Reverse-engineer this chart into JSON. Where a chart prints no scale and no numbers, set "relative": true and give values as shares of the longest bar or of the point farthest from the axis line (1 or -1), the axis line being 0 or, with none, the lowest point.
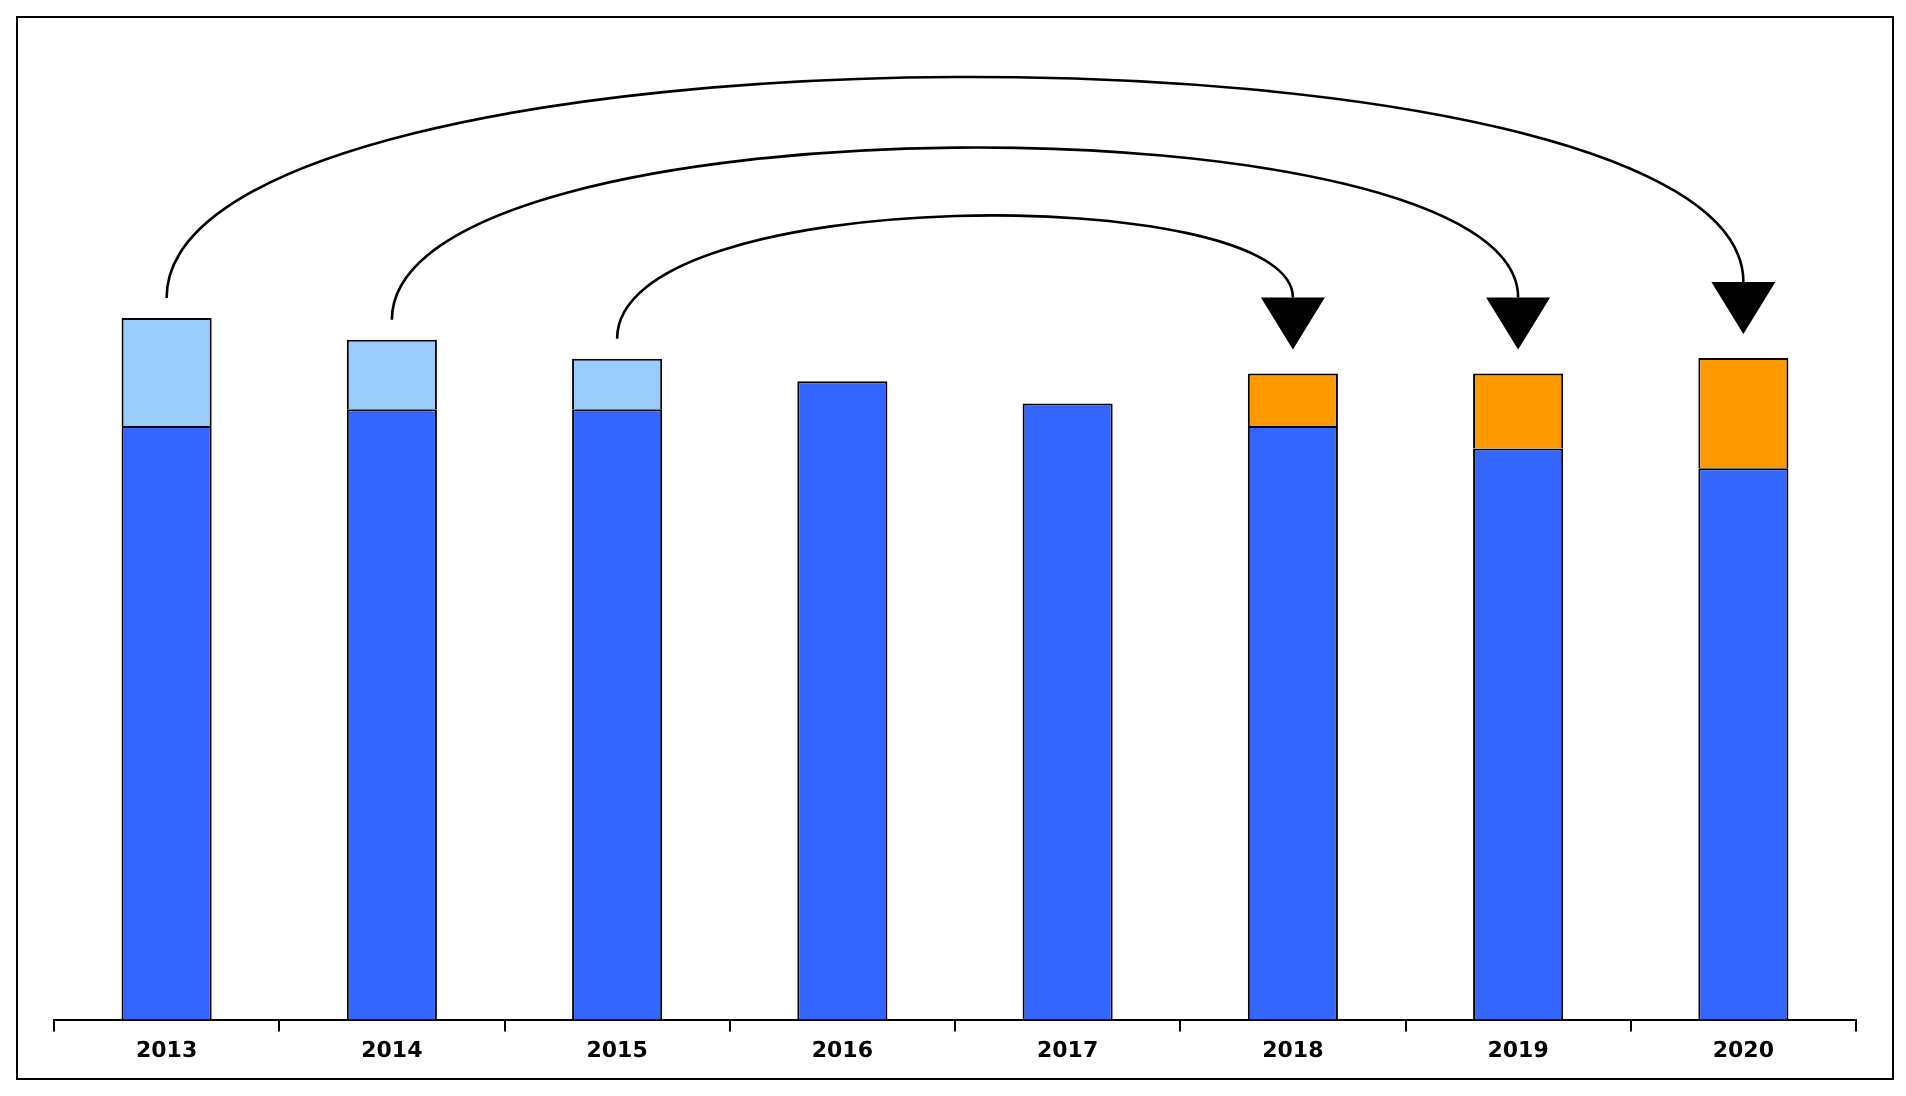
{
  "chart_data": {
    "type": "bar",
    "stacked": true,
    "relative": true,
    "legend": false,
    "grid": false,
    "categories": [
      "2013",
      "2014",
      "2015",
      "2016",
      "2017",
      "2018",
      "2019",
      "2020"
    ],
    "series": [
      {
        "color": "#3366ff",
        "values": [
          0.846,
          0.87,
          0.87,
          0.91,
          0.878,
          0.846,
          0.814,
          0.786
        ]
      },
      {
        "color": "#99ccff",
        "values": [
          0.154,
          0.099,
          0.072,
          null,
          null,
          null,
          null,
          null
        ]
      },
      {
        "color": "#ff9900",
        "values": [
          null,
          null,
          null,
          null,
          null,
          0.075,
          0.107,
          0.157
        ]
      }
    ]
  }
}
